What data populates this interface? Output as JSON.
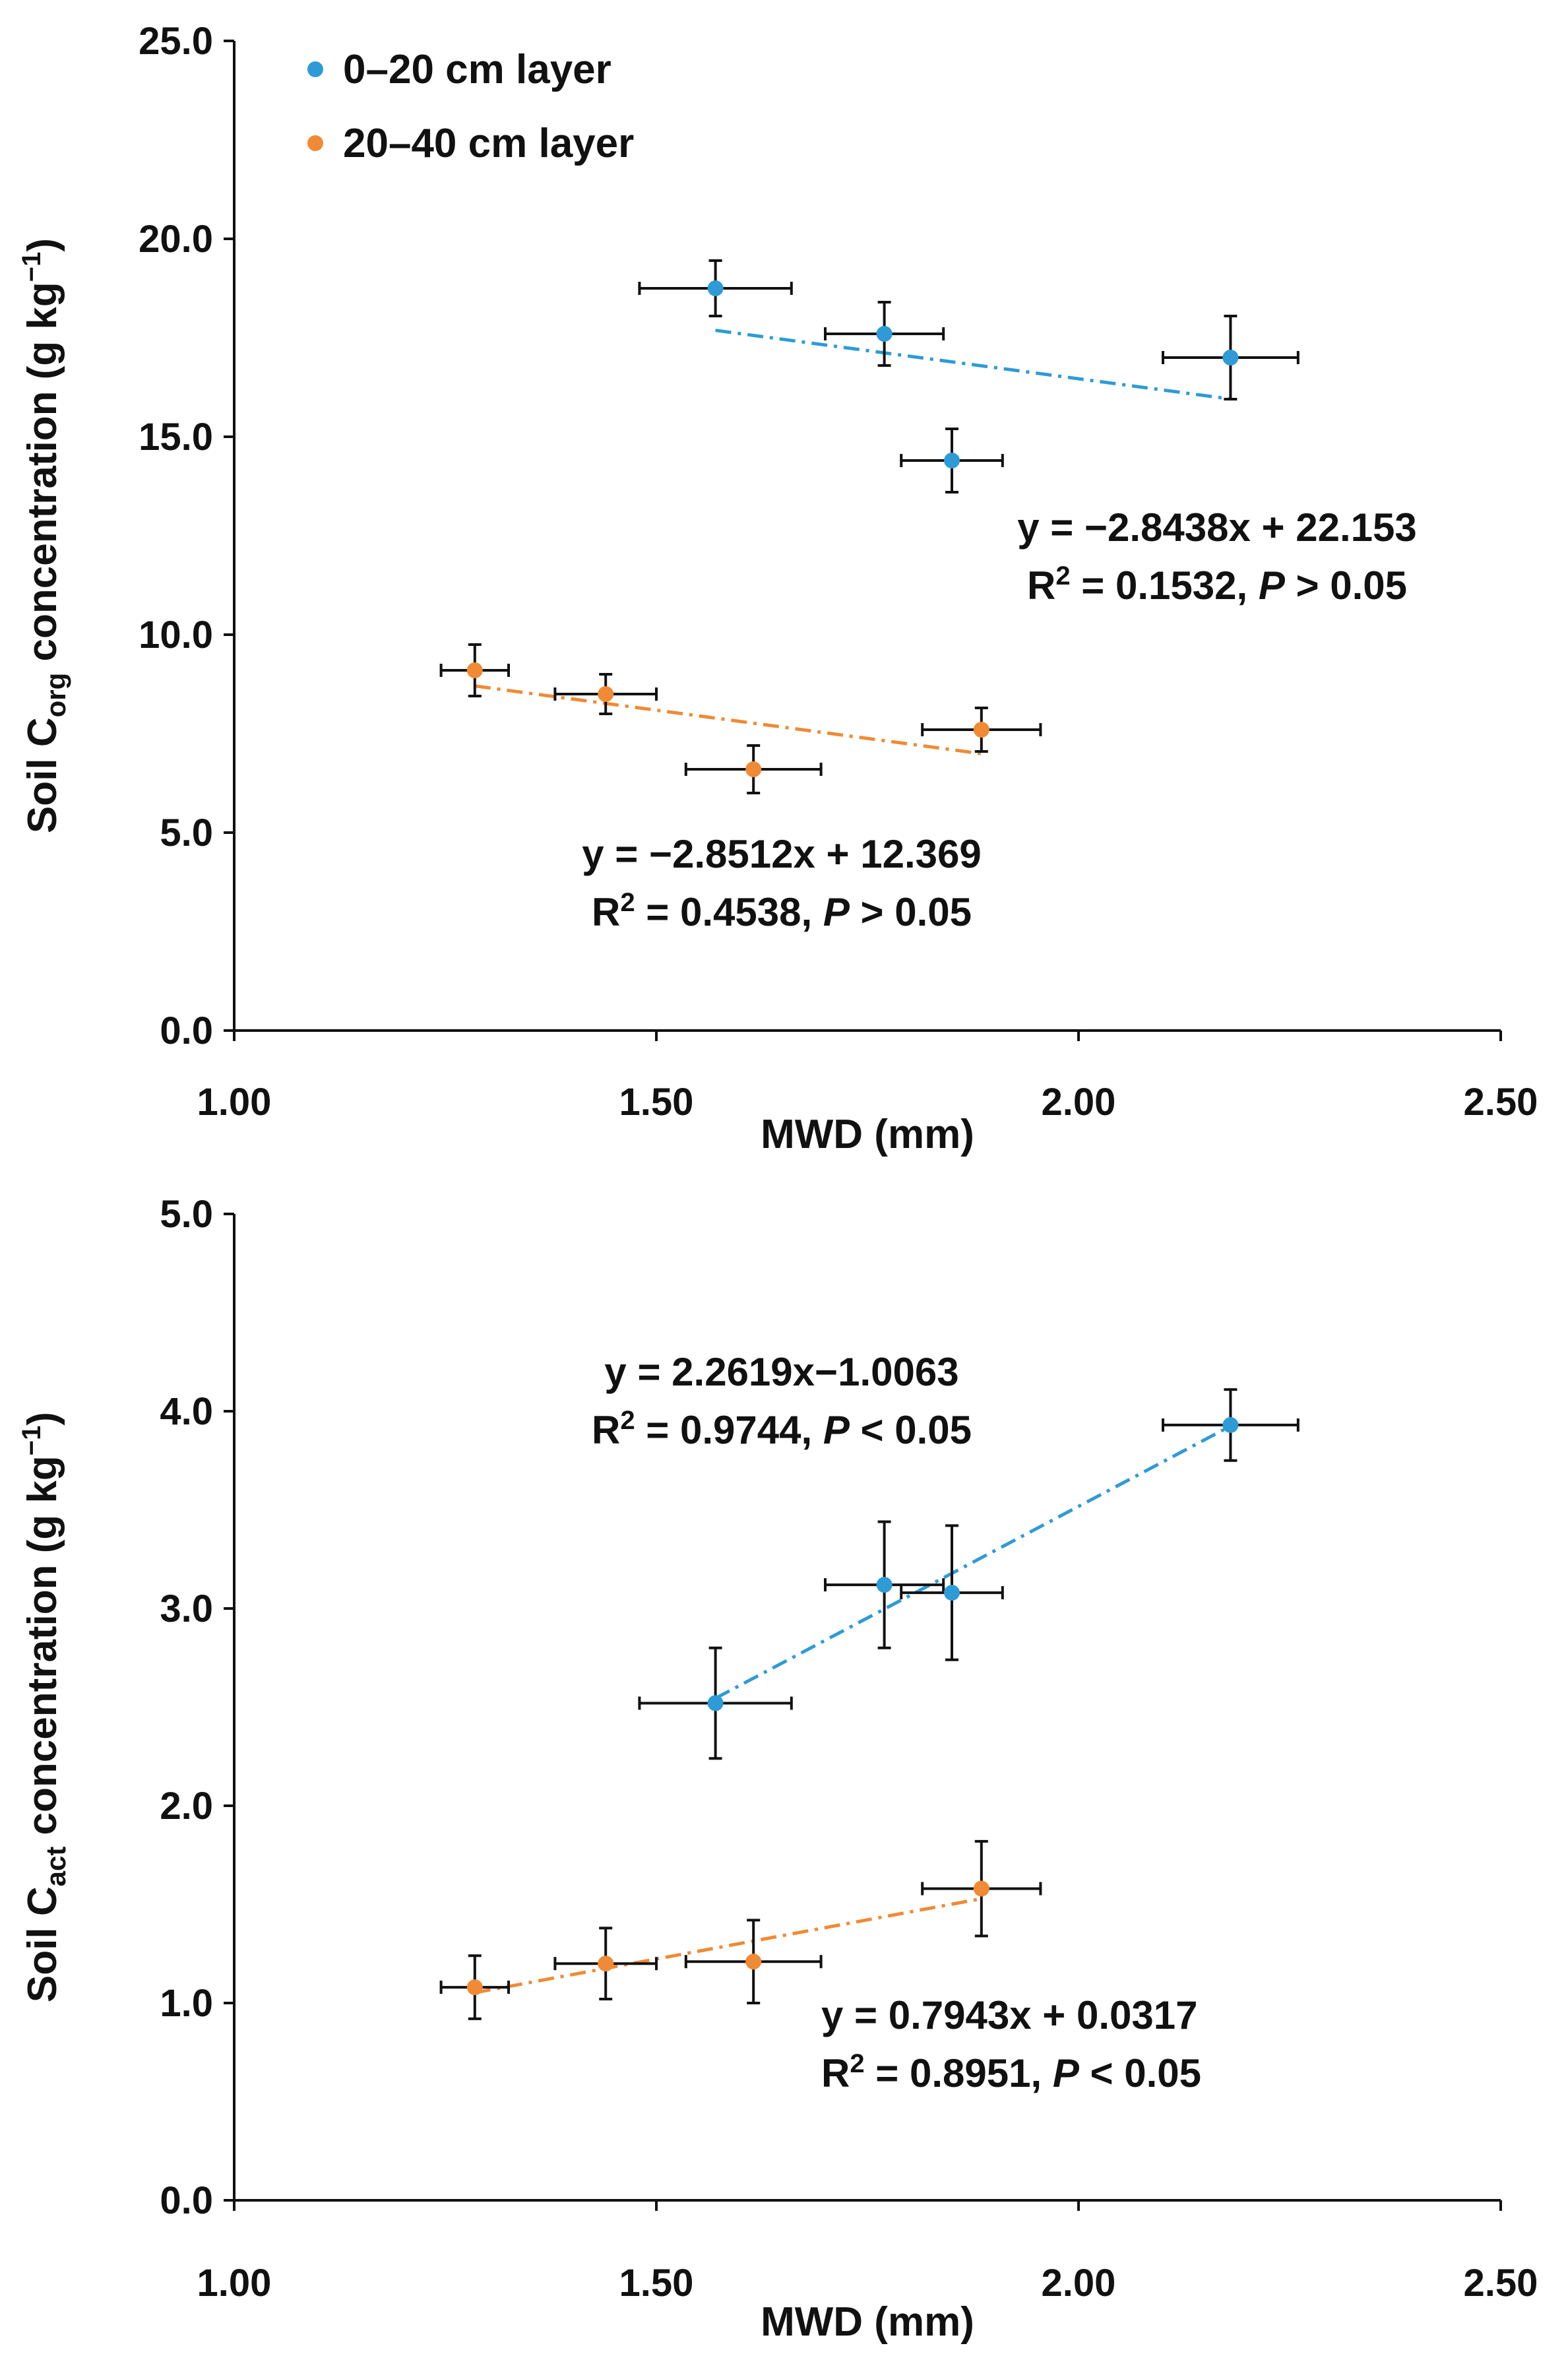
{
  "legend": {
    "items": [
      {
        "label": "0–20 cm layer",
        "color": "#2e9bd6"
      },
      {
        "label": "20–40 cm layer",
        "color": "#f08a35"
      }
    ]
  },
  "chart_data": [
    {
      "type": "scatter",
      "ylabel": {
        "prefix": "Soil C",
        "sub": "org",
        "suffix": " concentration (g kg",
        "sup": "−1",
        "close": ")"
      },
      "xlabel": "MWD (mm)",
      "xlim": [
        1.0,
        2.5
      ],
      "ylim": [
        0.0,
        25.0
      ],
      "xticks": [
        "1.00",
        "1.50",
        "2.00",
        "2.50"
      ],
      "yticks": [
        "0.0",
        "5.0",
        "10.0",
        "15.0",
        "20.0",
        "25.0"
      ],
      "series": [
        {
          "name": "0–20 cm layer",
          "color": "#2e9bd6",
          "points": [
            {
              "x": 1.57,
              "y": 18.75,
              "xerr": 0.09,
              "yerr": 0.7
            },
            {
              "x": 1.77,
              "y": 17.6,
              "xerr": 0.07,
              "yerr": 0.8
            },
            {
              "x": 1.85,
              "y": 14.4,
              "xerr": 0.06,
              "yerr": 0.8
            },
            {
              "x": 2.18,
              "y": 17.0,
              "xerr": 0.08,
              "yerr": 1.05
            }
          ],
          "trend": {
            "slope": -2.8438,
            "intercept": 22.153,
            "x_range": [
              1.57,
              2.18
            ]
          },
          "equation": "y = −2.8438x + 22.153",
          "stats": {
            "r": "R",
            "sup": "2",
            "mid": " = 0.1532, ",
            "p": "P",
            "rest": " > 0.05"
          }
        },
        {
          "name": "20–40 cm layer",
          "color": "#f08a35",
          "points": [
            {
              "x": 1.285,
              "y": 9.1,
              "xerr": 0.04,
              "yerr": 0.65
            },
            {
              "x": 1.44,
              "y": 8.5,
              "xerr": 0.06,
              "yerr": 0.5
            },
            {
              "x": 1.615,
              "y": 6.6,
              "xerr": 0.08,
              "yerr": 0.6
            },
            {
              "x": 1.885,
              "y": 7.6,
              "xerr": 0.07,
              "yerr": 0.55
            }
          ],
          "trend": {
            "slope": -2.8512,
            "intercept": 12.369,
            "x_range": [
              1.285,
              1.885
            ]
          },
          "equation": "y = −2.8512x + 12.369",
          "stats": {
            "r": "R",
            "sup": "2",
            "mid": " = 0.4538, ",
            "p": "P",
            "rest": " > 0.05"
          }
        }
      ]
    },
    {
      "type": "scatter",
      "ylabel": {
        "prefix": "Soil C",
        "sub": "act",
        "suffix": " concentration (g kg",
        "sup": "−1",
        "close": ")"
      },
      "xlabel": "MWD (mm)",
      "xlim": [
        1.0,
        2.5
      ],
      "ylim": [
        0.0,
        5.0
      ],
      "xticks": [
        "1.00",
        "1.50",
        "2.00",
        "2.50"
      ],
      "yticks": [
        "0.0",
        "1.0",
        "2.0",
        "3.0",
        "4.0",
        "5.0"
      ],
      "series": [
        {
          "name": "0–20 cm layer",
          "color": "#2e9bd6",
          "points": [
            {
              "x": 1.57,
              "y": 2.52,
              "xerr": 0.09,
              "yerr": 0.28
            },
            {
              "x": 1.77,
              "y": 3.12,
              "xerr": 0.07,
              "yerr": 0.32
            },
            {
              "x": 1.85,
              "y": 3.08,
              "xerr": 0.06,
              "yerr": 0.34
            },
            {
              "x": 2.18,
              "y": 3.93,
              "xerr": 0.08,
              "yerr": 0.18
            }
          ],
          "trend": {
            "slope": 2.2619,
            "intercept": -1.0063,
            "x_range": [
              1.57,
              2.18
            ]
          },
          "equation": "y = 2.2619x−1.0063",
          "stats": {
            "r": "R",
            "sup": "2",
            "mid": " = 0.9744, ",
            "p": "P",
            "rest": " < 0.05"
          }
        },
        {
          "name": "20–40 cm layer",
          "color": "#f08a35",
          "points": [
            {
              "x": 1.285,
              "y": 1.08,
              "xerr": 0.04,
              "yerr": 0.16
            },
            {
              "x": 1.44,
              "y": 1.2,
              "xerr": 0.06,
              "yerr": 0.18
            },
            {
              "x": 1.615,
              "y": 1.21,
              "xerr": 0.08,
              "yerr": 0.21
            },
            {
              "x": 1.885,
              "y": 1.58,
              "xerr": 0.07,
              "yerr": 0.24
            }
          ],
          "trend": {
            "slope": 0.7943,
            "intercept": 0.0317,
            "x_range": [
              1.285,
              1.885
            ]
          },
          "equation": "y = 0.7943x + 0.0317",
          "stats": {
            "r": "R",
            "sup": "2",
            "mid": " = 0.8951, ",
            "p": "P",
            "rest": " < 0.05"
          }
        }
      ]
    }
  ]
}
